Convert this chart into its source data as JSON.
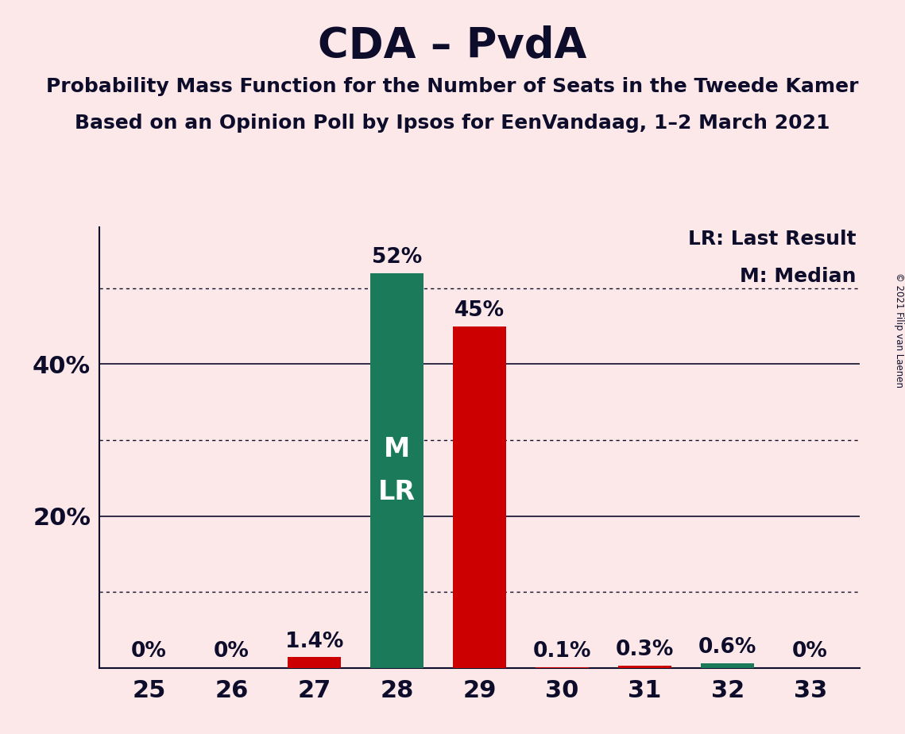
{
  "title": "CDA – PvdA",
  "subtitle1": "Probability Mass Function for the Number of Seats in the Tweede Kamer",
  "subtitle2": "Based on an Opinion Poll by Ipsos for EenVandaag, 1–2 March 2021",
  "copyright": "© 2021 Filip van Laenen",
  "categories": [
    25,
    26,
    27,
    28,
    29,
    30,
    31,
    32,
    33
  ],
  "values": [
    0.0,
    0.0,
    1.4,
    52.0,
    45.0,
    0.1,
    0.3,
    0.6,
    0.0
  ],
  "bar_colors": [
    "#cc0000",
    "#cc0000",
    "#cc0000",
    "#1a7a5a",
    "#cc0000",
    "#cc0000",
    "#cc0000",
    "#1a7a5a",
    "#cc0000"
  ],
  "label_texts": [
    "0%",
    "0%",
    "1.4%",
    "52%",
    "45%",
    "0.1%",
    "0.3%",
    "0.6%",
    "0%"
  ],
  "median_bar": 28,
  "lr_bar": 28,
  "inside_label": "M\nLR",
  "legend_lr": "LR: Last Result",
  "legend_m": "M: Median",
  "background_color": "#fce8e8",
  "bar_teal": "#1a7a5a",
  "bar_red": "#cc0000",
  "title_color": "#0d0d2b",
  "text_color": "#0d0d2b",
  "ylim": [
    0,
    58
  ],
  "ytick_solid": [
    20,
    40
  ],
  "ytick_dotted": [
    10,
    30,
    50
  ],
  "ytick_labels_pos": [
    20,
    40
  ],
  "ytick_labels_text": [
    "20%",
    "40%"
  ],
  "title_fontsize": 38,
  "subtitle_fontsize": 18,
  "label_fontsize": 19,
  "axis_fontsize": 22,
  "inside_label_fontsize": 24
}
